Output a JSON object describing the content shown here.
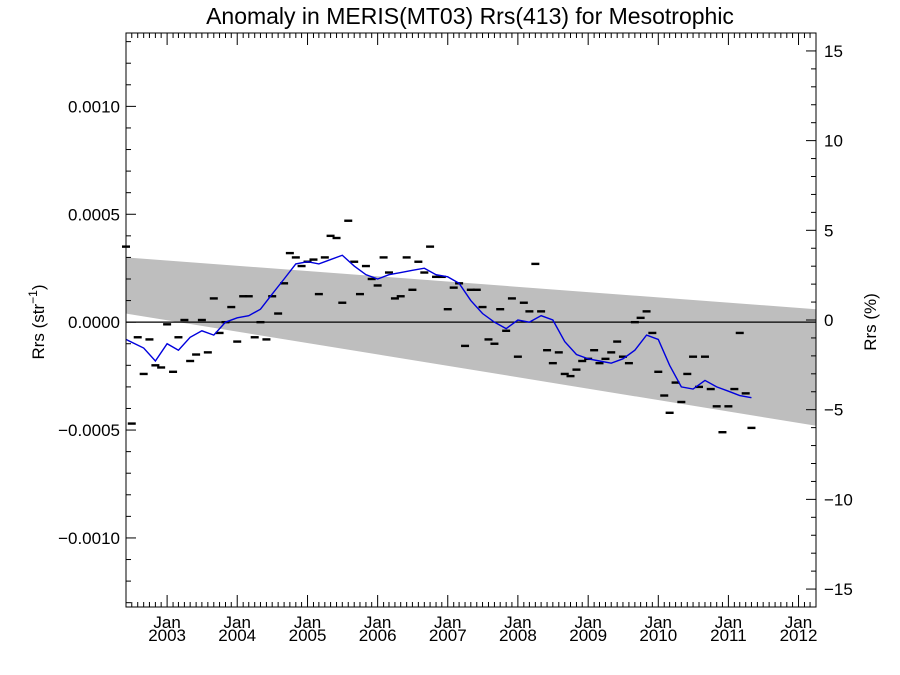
{
  "chart_data": {
    "type": "line",
    "title": "Anomaly in MERIS(MT03) Rrs(413) for Mesotrophic",
    "ylabel": "Rrs (str",
    "ylabel_sup": "−1",
    "ylabel_close": ")",
    "y2label": "Rrs (%)",
    "xlim": [
      "2002-06-01",
      "2012-04-01"
    ],
    "ylim": [
      -0.00132,
      0.00134
    ],
    "y2lim": [
      -16.0,
      16.0
    ],
    "y_ticks": [
      {
        "value": 0.001,
        "label": "0.0010"
      },
      {
        "value": 0.0005,
        "label": "0.0005"
      },
      {
        "value": 0.0,
        "label": "0.0000"
      },
      {
        "value": -0.0005,
        "label": "−0.0005"
      },
      {
        "value": -0.001,
        "label": "−0.0010"
      }
    ],
    "y2_ticks": [
      {
        "value": 15,
        "label": "15"
      },
      {
        "value": 10,
        "label": "10"
      },
      {
        "value": 5,
        "label": "5"
      },
      {
        "value": 0,
        "label": "0"
      },
      {
        "value": -5,
        "label": "−5"
      },
      {
        "value": -10,
        "label": "−10"
      },
      {
        "value": -15,
        "label": "−15"
      }
    ],
    "x_ticks": [
      {
        "date": "2003-01-01",
        "line1": "Jan",
        "line2": "2003"
      },
      {
        "date": "2004-01-01",
        "line1": "Jan",
        "line2": "2004"
      },
      {
        "date": "2005-01-01",
        "line1": "Jan",
        "line2": "2005"
      },
      {
        "date": "2006-01-01",
        "line1": "Jan",
        "line2": "2006"
      },
      {
        "date": "2007-01-01",
        "line1": "Jan",
        "line2": "2007"
      },
      {
        "date": "2008-01-01",
        "line1": "Jan",
        "line2": "2008"
      },
      {
        "date": "2009-01-01",
        "line1": "Jan",
        "line2": "2009"
      },
      {
        "date": "2010-01-01",
        "line1": "Jan",
        "line2": "2010"
      },
      {
        "date": "2011-01-01",
        "line1": "Jan",
        "line2": "2011"
      },
      {
        "date": "2012-01-01",
        "line1": "Jan",
        "line2": "2012"
      }
    ],
    "zero_line": 0.0,
    "trend_band": {
      "start_date": "2002-06-01",
      "end_date": "2012-04-01",
      "upper": [
        0.0003,
        6e-05
      ],
      "lower": [
        4e-05,
        -0.00048
      ],
      "color": "#bebebe"
    },
    "series": [
      {
        "type": "scatter",
        "color": "#000000",
        "points": [
          [
            "2002-06-01",
            0.00035
          ],
          [
            "2002-07-01",
            -0.00047
          ],
          [
            "2002-08-01",
            -7e-05
          ],
          [
            "2002-09-01",
            -0.00024
          ],
          [
            "2002-10-01",
            -8e-05
          ],
          [
            "2002-11-01",
            -0.0002
          ],
          [
            "2002-12-01",
            -0.00021
          ],
          [
            "2003-01-01",
            -1e-05
          ],
          [
            "2003-02-01",
            -0.00023
          ],
          [
            "2003-03-01",
            -7e-05
          ],
          [
            "2003-04-01",
            1e-05
          ],
          [
            "2003-05-01",
            -0.00018
          ],
          [
            "2003-06-01",
            -0.00015
          ],
          [
            "2003-07-01",
            1e-05
          ],
          [
            "2003-08-01",
            -0.00014
          ],
          [
            "2003-09-01",
            0.00011
          ],
          [
            "2003-10-01",
            -5e-05
          ],
          [
            "2003-11-01",
            0.0
          ],
          [
            "2003-12-01",
            7e-05
          ],
          [
            "2004-01-01",
            -9e-05
          ],
          [
            "2004-02-01",
            0.00012
          ],
          [
            "2004-03-01",
            0.00012
          ],
          [
            "2004-04-01",
            -7e-05
          ],
          [
            "2004-05-01",
            0.0
          ],
          [
            "2004-06-01",
            -8e-05
          ],
          [
            "2004-07-01",
            0.00012
          ],
          [
            "2004-08-01",
            4e-05
          ],
          [
            "2004-09-01",
            0.00018
          ],
          [
            "2004-10-01",
            0.00032
          ],
          [
            "2004-11-01",
            0.0003
          ],
          [
            "2004-12-01",
            0.00026
          ],
          [
            "2005-01-01",
            0.00028
          ],
          [
            "2005-02-01",
            0.00029
          ],
          [
            "2005-03-01",
            0.00013
          ],
          [
            "2005-04-01",
            0.0003
          ],
          [
            "2005-05-01",
            0.0004
          ],
          [
            "2005-06-01",
            0.00039
          ],
          [
            "2005-07-01",
            9e-05
          ],
          [
            "2005-08-01",
            0.00047
          ],
          [
            "2005-09-01",
            0.00028
          ],
          [
            "2005-10-01",
            0.00013
          ],
          [
            "2005-11-01",
            0.00026
          ],
          [
            "2005-12-01",
            0.0002
          ],
          [
            "2006-01-01",
            0.00017
          ],
          [
            "2006-02-01",
            0.0003
          ],
          [
            "2006-03-01",
            0.00023
          ],
          [
            "2006-04-01",
            0.00011
          ],
          [
            "2006-05-01",
            0.00012
          ],
          [
            "2006-06-01",
            0.0003
          ],
          [
            "2006-07-01",
            0.00015
          ],
          [
            "2006-08-01",
            0.00028
          ],
          [
            "2006-09-01",
            0.00023
          ],
          [
            "2006-10-01",
            0.00035
          ],
          [
            "2006-11-01",
            0.00021
          ],
          [
            "2006-12-01",
            0.00021
          ],
          [
            "2007-01-01",
            6e-05
          ],
          [
            "2007-02-01",
            0.00016
          ],
          [
            "2007-03-01",
            0.00018
          ],
          [
            "2007-04-01",
            -0.00011
          ],
          [
            "2007-05-01",
            0.00015
          ],
          [
            "2007-06-01",
            0.00015
          ],
          [
            "2007-07-01",
            7e-05
          ],
          [
            "2007-08-01",
            -8e-05
          ],
          [
            "2007-09-01",
            -0.0001
          ],
          [
            "2007-10-01",
            6e-05
          ],
          [
            "2007-11-01",
            -4e-05
          ],
          [
            "2007-12-01",
            0.00011
          ],
          [
            "2008-01-01",
            -0.00016
          ],
          [
            "2008-02-01",
            9e-05
          ],
          [
            "2008-03-01",
            5e-05
          ],
          [
            "2008-04-01",
            0.00027
          ],
          [
            "2008-05-01",
            5e-05
          ],
          [
            "2008-06-01",
            -0.00013
          ],
          [
            "2008-07-01",
            -0.00019
          ],
          [
            "2008-08-01",
            -0.00014
          ],
          [
            "2008-09-01",
            -0.00024
          ],
          [
            "2008-10-01",
            -0.00025
          ],
          [
            "2008-11-01",
            -0.00022
          ],
          [
            "2008-12-01",
            -0.00018
          ],
          [
            "2009-01-01",
            -0.00017
          ],
          [
            "2009-02-01",
            -0.00013
          ],
          [
            "2009-03-01",
            -0.00019
          ],
          [
            "2009-04-01",
            -0.00017
          ],
          [
            "2009-05-01",
            -0.00014
          ],
          [
            "2009-06-01",
            -9e-05
          ],
          [
            "2009-07-01",
            -0.00016
          ],
          [
            "2009-08-01",
            -0.00019
          ],
          [
            "2009-09-01",
            0.0
          ],
          [
            "2009-10-01",
            2e-05
          ],
          [
            "2009-11-01",
            5e-05
          ],
          [
            "2009-12-01",
            -5e-05
          ],
          [
            "2010-01-01",
            -0.00023
          ],
          [
            "2010-02-01",
            -0.00034
          ],
          [
            "2010-03-01",
            -0.00042
          ],
          [
            "2010-04-01",
            -0.00028
          ],
          [
            "2010-05-01",
            -0.00037
          ],
          [
            "2010-06-01",
            -0.00024
          ],
          [
            "2010-07-01",
            -0.00016
          ],
          [
            "2010-08-01",
            -0.0003
          ],
          [
            "2010-09-01",
            -0.00016
          ],
          [
            "2010-10-01",
            -0.00031
          ],
          [
            "2010-11-01",
            -0.00039
          ],
          [
            "2010-12-01",
            -0.00051
          ],
          [
            "2011-01-01",
            -0.00039
          ],
          [
            "2011-02-01",
            -0.00031
          ],
          [
            "2011-03-01",
            -5e-05
          ],
          [
            "2011-04-01",
            -0.00033
          ],
          [
            "2011-05-01",
            -0.00049
          ]
        ]
      },
      {
        "type": "line",
        "color": "#0000dd",
        "points": [
          [
            "2002-06-01",
            -8e-05
          ],
          [
            "2002-09-01",
            -0.00012
          ],
          [
            "2002-11-01",
            -0.00018
          ],
          [
            "2003-01-01",
            -0.0001
          ],
          [
            "2003-03-01",
            -0.00013
          ],
          [
            "2003-05-01",
            -7e-05
          ],
          [
            "2003-07-01",
            -4e-05
          ],
          [
            "2003-09-01",
            -6e-05
          ],
          [
            "2003-11-01",
            0.0
          ],
          [
            "2004-01-01",
            2e-05
          ],
          [
            "2004-03-01",
            3e-05
          ],
          [
            "2004-05-01",
            6e-05
          ],
          [
            "2004-07-01",
            0.00013
          ],
          [
            "2004-09-01",
            0.0002
          ],
          [
            "2004-11-01",
            0.00027
          ],
          [
            "2005-01-01",
            0.00028
          ],
          [
            "2005-03-01",
            0.00027
          ],
          [
            "2005-05-01",
            0.00029
          ],
          [
            "2005-07-01",
            0.00031
          ],
          [
            "2005-09-01",
            0.00026
          ],
          [
            "2005-11-01",
            0.00022
          ],
          [
            "2006-01-01",
            0.0002
          ],
          [
            "2006-03-01",
            0.00022
          ],
          [
            "2006-05-01",
            0.00023
          ],
          [
            "2006-07-01",
            0.00024
          ],
          [
            "2006-09-01",
            0.00025
          ],
          [
            "2006-11-01",
            0.00022
          ],
          [
            "2007-01-01",
            0.00021
          ],
          [
            "2007-03-01",
            0.00018
          ],
          [
            "2007-05-01",
            0.0001
          ],
          [
            "2007-07-01",
            4e-05
          ],
          [
            "2007-09-01",
            0.0
          ],
          [
            "2007-11-01",
            -3e-05
          ],
          [
            "2008-01-01",
            1e-05
          ],
          [
            "2008-03-01",
            0.0
          ],
          [
            "2008-05-01",
            3e-05
          ],
          [
            "2008-07-01",
            1e-05
          ],
          [
            "2008-09-01",
            -9e-05
          ],
          [
            "2008-11-01",
            -0.00015
          ],
          [
            "2009-01-01",
            -0.00017
          ],
          [
            "2009-03-01",
            -0.00018
          ],
          [
            "2009-05-01",
            -0.00019
          ],
          [
            "2009-07-01",
            -0.00017
          ],
          [
            "2009-09-01",
            -0.00013
          ],
          [
            "2009-11-01",
            -6e-05
          ],
          [
            "2010-01-01",
            -8e-05
          ],
          [
            "2010-03-01",
            -0.0002
          ],
          [
            "2010-05-01",
            -0.0003
          ],
          [
            "2010-07-01",
            -0.00031
          ],
          [
            "2010-09-01",
            -0.00027
          ],
          [
            "2010-11-01",
            -0.0003
          ],
          [
            "2011-01-01",
            -0.00032
          ],
          [
            "2011-03-01",
            -0.00034
          ],
          [
            "2011-05-01",
            -0.00035
          ]
        ]
      }
    ],
    "grid": false
  }
}
